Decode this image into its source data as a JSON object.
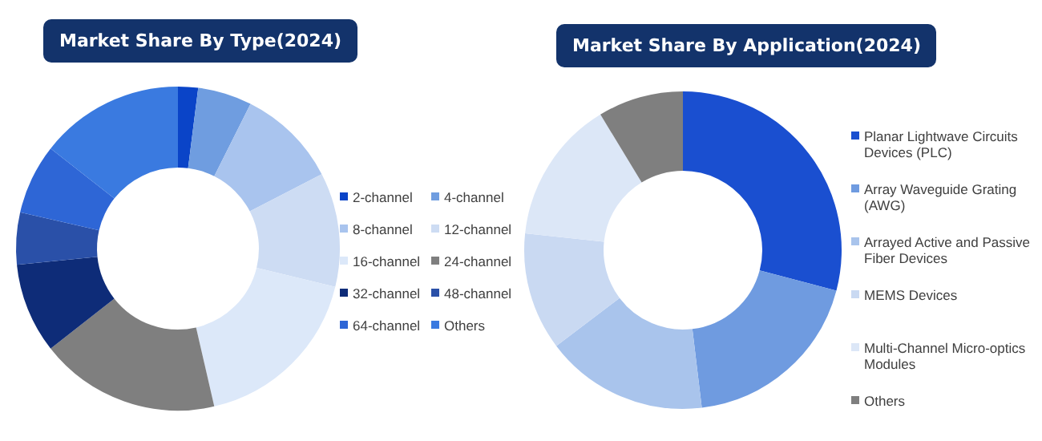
{
  "chart_data": [
    {
      "type": "donut",
      "title": "Market Share By Type(2024)",
      "categories": [
        "2-channel",
        "4-channel",
        "8-channel",
        "12-channel",
        "16-channel",
        "24-channel",
        "32-channel",
        "48-channel",
        "64-channel",
        "Others"
      ],
      "values": [
        2,
        5.4,
        10,
        11.4,
        17.6,
        18,
        9,
        5.2,
        7,
        14.4
      ],
      "colors": [
        "#0a44c8",
        "#6f9de0",
        "#a9c4ee",
        "#cddcf3",
        "#dce8f9",
        "#7f7f7f",
        "#0e2c78",
        "#2a50a8",
        "#2e66d6",
        "#3a7ae0"
      ],
      "legend": "right"
    },
    {
      "type": "donut",
      "title": "Market Share By Application(2024)",
      "categories": [
        "Planar Lightwave Circuits Devices (PLC)",
        "Array Waveguide Grating (AWG)",
        "Arrayed Active and Passive Fiber Devices",
        "MEMS Devices",
        "Multi-Channel Micro-optics Modules",
        "Others"
      ],
      "values": [
        29.1,
        19,
        16.6,
        12,
        14.6,
        8.7
      ],
      "colors": [
        "#1a4fd0",
        "#6f9be0",
        "#a9c4ec",
        "#c9d9f2",
        "#dce7f7",
        "#7f7f7f"
      ],
      "legend": "right"
    }
  ]
}
